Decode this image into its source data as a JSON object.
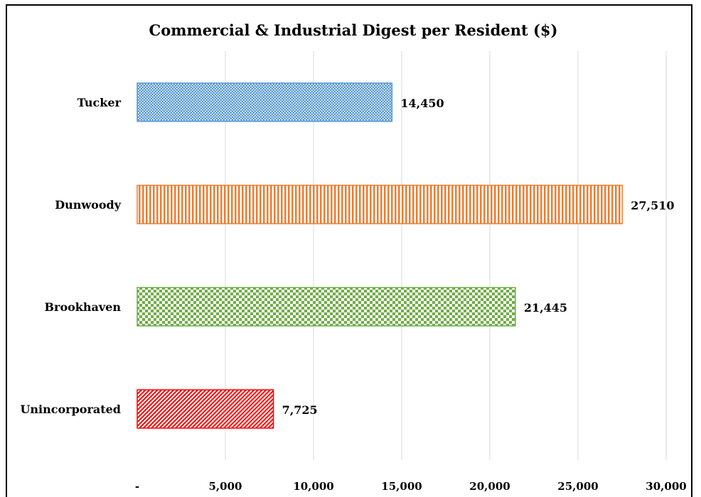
{
  "chart_data": {
    "type": "bar",
    "orientation": "horizontal",
    "title": "Commercial & Industrial Digest per Resident ($)",
    "categories": [
      "Tucker",
      "Dunwoody",
      "Brookhaven",
      "Unincorporated"
    ],
    "values": [
      14450,
      27510,
      21445,
      7725
    ],
    "value_labels": [
      "14,450",
      "27,510",
      "21,445",
      "7,725"
    ],
    "xlim": [
      0,
      30000
    ],
    "x_ticks": [
      0,
      5000,
      10000,
      15000,
      20000,
      25000,
      30000
    ],
    "x_tick_labels": [
      "-",
      "5,000",
      "10,000",
      "15,000",
      "20,000",
      "25,000",
      "30,000"
    ],
    "grid": "vertical",
    "legend": "none",
    "colors": [
      "#5b9bd5",
      "#ed7d31",
      "#70ad47",
      "#ff0000"
    ],
    "patterns": [
      "dotted-grid",
      "vertical-stripes",
      "checkerboard",
      "diagonal-hatch"
    ]
  }
}
